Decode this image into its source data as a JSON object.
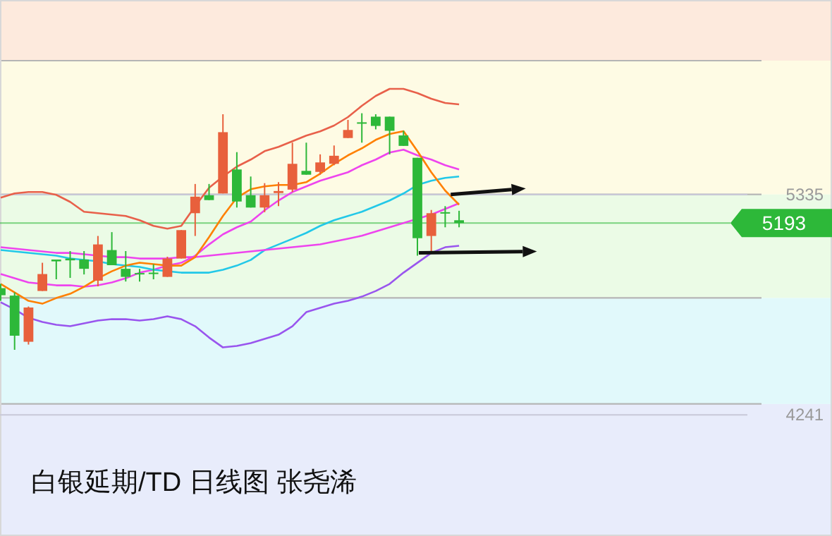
{
  "chart_data": {
    "type": "candlestick",
    "title": "白银延期/TD 日线图 张尧浠",
    "categories": [
      null,
      null,
      null,
      null,
      null,
      null,
      null,
      null,
      null,
      null,
      null,
      null,
      null,
      null,
      null,
      null,
      null,
      null,
      null,
      null,
      null,
      null,
      null,
      null,
      null,
      null,
      null,
      null,
      null,
      null,
      null,
      null,
      null,
      null
    ],
    "ohlc": [
      [
        4870,
        4891,
        4807,
        4835
      ],
      [
        4833,
        4849,
        4564,
        4634
      ],
      [
        4604,
        4779,
        4590,
        4774
      ],
      [
        4856,
        4996,
        4856,
        4940
      ],
      [
        5012,
        5012,
        4914,
        5003
      ],
      [
        5017,
        5054,
        4921,
        5008
      ],
      [
        5012,
        5054,
        4938,
        4966
      ],
      [
        4907,
        5129,
        4879,
        5087
      ],
      [
        5059,
        5148,
        4984,
        4984
      ],
      [
        4966,
        5054,
        4903,
        4926
      ],
      [
        4945,
        4966,
        4903,
        4938
      ],
      [
        4947,
        4989,
        4914,
        4940
      ],
      [
        4926,
        5026,
        4926,
        5017
      ],
      [
        5017,
        5158,
        5017,
        5158
      ],
      [
        5242,
        5387,
        5129,
        5324
      ],
      [
        5331,
        5387,
        5307,
        5307
      ],
      [
        5340,
        5733,
        5340,
        5644
      ],
      [
        5459,
        5545,
        5270,
        5300
      ],
      [
        5331,
        5424,
        5270,
        5270
      ],
      [
        5270,
        5391,
        5247,
        5331
      ],
      [
        5342,
        5396,
        5277,
        5352
      ],
      [
        5359,
        5592,
        5347,
        5487
      ],
      [
        5452,
        5592,
        5433,
        5433
      ],
      [
        5447,
        5534,
        5433,
        5494
      ],
      [
        5487,
        5578,
        5480,
        5527
      ],
      [
        5615,
        5705,
        5615,
        5655
      ],
      [
        5693,
        5738,
        5592,
        5686
      ],
      [
        5721,
        5733,
        5658,
        5675
      ],
      [
        5721,
        5721,
        5534,
        5651
      ],
      [
        5628,
        5651,
        5576,
        5576
      ],
      [
        5517,
        5517,
        5031,
        5118
      ],
      [
        5129,
        5258,
        5043,
        5242
      ],
      [
        5247,
        5277,
        5172,
        5240
      ],
      [
        5207,
        5254,
        5172,
        5193
      ]
    ],
    "colors": [
      "#2db839",
      "#2db839",
      "#e8603c",
      "#e8603c",
      "#2db839",
      "#2db839",
      "#2db839",
      "#e8603c",
      "#2db839",
      "#2db839",
      "#2db839",
      "#2db839",
      "#e8603c",
      "#e8603c",
      "#e8603c",
      "#2db839",
      "#e8603c",
      "#2db839",
      "#2db839",
      "#e8603c",
      "#e8603c",
      "#e8603c",
      "#2db839",
      "#e8603c",
      "#e8603c",
      "#e8603c",
      "#2db839",
      "#2db839",
      "#2db839",
      "#2db839",
      "#2db839",
      "#e8603c",
      "#2db839",
      "#2db839"
    ],
    "series": [
      {
        "type": "line",
        "color": "#e8604a",
        "values": [
          5319,
          5340,
          5347,
          5347,
          5333,
          5298,
          5249,
          5242,
          5235,
          5228,
          5207,
          5179,
          5165,
          5179,
          5277,
          5368,
          5424,
          5473,
          5508,
          5550,
          5571,
          5599,
          5627,
          5648,
          5677,
          5719,
          5775,
          5824,
          5859,
          5859,
          5838,
          5810,
          5789,
          5782
        ]
      },
      {
        "type": "line",
        "color": "#ee44ee",
        "values": [
          4940,
          4919,
          4898,
          4891,
          4884,
          4884,
          4877,
          4884,
          4898,
          4919,
          4947,
          4961,
          4982,
          4996,
          5031,
          5087,
          5137,
          5172,
          5200,
          5256,
          5305,
          5347,
          5375,
          5403,
          5424,
          5445,
          5480,
          5508,
          5543,
          5557,
          5529,
          5508,
          5480,
          5459
        ]
      },
      {
        "type": "line",
        "color": "#22c8e8",
        "values": [
          5059,
          5052,
          5045,
          5038,
          5031,
          5017,
          5010,
          5003,
          4989,
          4982,
          4975,
          4961,
          4954,
          4947,
          4947,
          4947,
          4961,
          4982,
          5010,
          5059,
          5087,
          5115,
          5144,
          5179,
          5207,
          5228,
          5249,
          5277,
          5305,
          5340,
          5382,
          5403,
          5417,
          5424
        ]
      },
      {
        "type": "line",
        "color": "#ee44ee",
        "values": [
          5073,
          5066,
          5059,
          5052,
          5045,
          5045,
          5038,
          5031,
          5024,
          5024,
          5017,
          5017,
          5017,
          5024,
          5024,
          5031,
          5038,
          5045,
          5052,
          5059,
          5066,
          5073,
          5080,
          5087,
          5101,
          5115,
          5130,
          5151,
          5172,
          5193,
          5214,
          5235,
          5263,
          5291
        ]
      },
      {
        "type": "line",
        "color": "#9955ee",
        "values": [
          4800,
          4765,
          4723,
          4702,
          4688,
          4681,
          4695,
          4709,
          4716,
          4716,
          4709,
          4716,
          4730,
          4716,
          4681,
          4625,
          4576,
          4583,
          4597,
          4618,
          4639,
          4681,
          4751,
          4772,
          4793,
          4807,
          4828,
          4856,
          4891,
          4947,
          4996,
          5045,
          5073,
          5080
        ]
      },
      {
        "type": "line",
        "color": "#ff8000",
        "values": [
          4891,
          4849,
          4807,
          4793,
          4821,
          4842,
          4877,
          4919,
          4954,
          4982,
          4996,
          4989,
          4982,
          4982,
          5024,
          5123,
          5228,
          5319,
          5361,
          5375,
          5382,
          5382,
          5396,
          5438,
          5487,
          5529,
          5564,
          5606,
          5635,
          5649,
          5550,
          5445,
          5354,
          5284
        ]
      }
    ],
    "ylim": [
      3640,
      6300
    ],
    "yticks": [
      5335,
      4241
    ],
    "grid": "y",
    "ref_lines": [
      {
        "axis": "y",
        "value": 5193,
        "label": "5193",
        "color": "#2db839"
      }
    ],
    "bands": [
      {
        "axis": "y",
        "from": 5999,
        "to": 6300,
        "color": "#fdeadd"
      },
      {
        "axis": "y",
        "from": 5335,
        "to": 5999,
        "color": "#fefbe4"
      },
      {
        "axis": "y",
        "from": 4821,
        "to": 5335,
        "color": "#ebfbe6"
      },
      {
        "axis": "y",
        "from": 4295,
        "to": 4821,
        "color": "#e1f9fb"
      },
      {
        "axis": "y",
        "from": 3640,
        "to": 4295,
        "color": "#e8ecfb"
      }
    ]
  }
}
